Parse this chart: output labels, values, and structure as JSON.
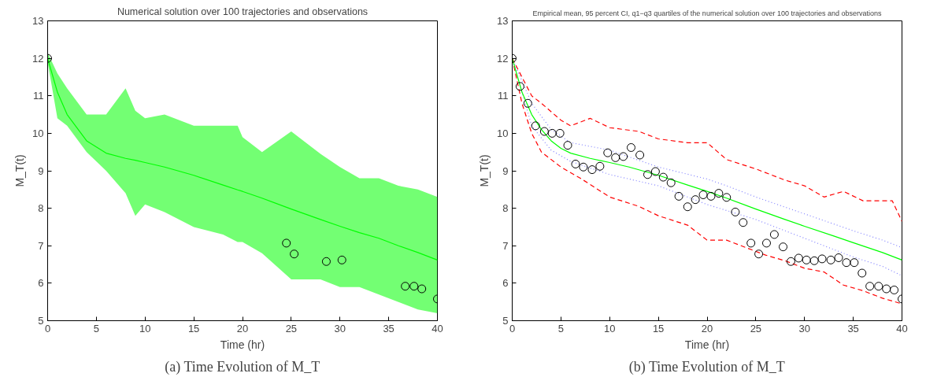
{
  "chart_data": [
    {
      "type": "line",
      "title": "Numerical solution over 100 trajectories and observations",
      "xlabel": "Time (hr)",
      "ylabel": "M_T(t)",
      "xlim": [
        0,
        40
      ],
      "ylim": [
        5,
        13
      ],
      "xticks": [
        0,
        5,
        10,
        15,
        20,
        25,
        30,
        35,
        40
      ],
      "yticks": [
        5,
        6,
        7,
        8,
        9,
        10,
        11,
        12,
        13
      ],
      "grid": false,
      "annotations": [
        "(a) Time Evolution of M_T"
      ],
      "series": [
        {
          "color": "#00ff00",
          "x": [
            0,
            1,
            2,
            4,
            6,
            8,
            9,
            10,
            12,
            15,
            18,
            19.5,
            20,
            22,
            25,
            28,
            30,
            32,
            34,
            36,
            38,
            40
          ],
          "values": [
            12.0,
            11.1,
            10.5,
            9.8,
            9.47,
            9.33,
            9.28,
            9.22,
            9.1,
            8.88,
            8.62,
            8.49,
            8.45,
            8.27,
            7.98,
            7.7,
            7.52,
            7.35,
            7.2,
            7.0,
            6.82,
            6.62
          ],
          "upper": [
            12.15,
            11.6,
            11.2,
            10.5,
            10.5,
            11.2,
            10.6,
            10.4,
            10.5,
            10.2,
            10.2,
            10.2,
            9.9,
            9.5,
            10.05,
            9.45,
            9.1,
            8.8,
            8.8,
            8.6,
            8.5,
            8.3
          ],
          "lower": [
            11.9,
            10.4,
            10.2,
            9.5,
            9.0,
            8.4,
            7.8,
            8.1,
            7.9,
            7.5,
            7.3,
            7.1,
            7.1,
            6.8,
            6.1,
            6.1,
            5.9,
            5.9,
            5.7,
            5.5,
            5.3,
            5.2
          ]
        },
        {
          "type": "scatter",
          "color": "#000000",
          "marker": "circle",
          "x": [
            0,
            24.5,
            25.3,
            28.6,
            30.2,
            36.7,
            37.6,
            38.4,
            40
          ],
          "values": [
            12.0,
            7.07,
            6.78,
            6.58,
            6.62,
            5.92,
            5.92,
            5.85,
            5.58
          ]
        }
      ]
    },
    {
      "type": "line",
      "title": "Empirical mean, 95 percent CI, q1−q3 quartiles of the numerical solution over 100 trajectories and observations",
      "xlabel": "Time (hr)",
      "ylabel": "M_T(t)",
      "xlim": [
        0,
        40
      ],
      "ylim": [
        5,
        13
      ],
      "xticks": [
        0,
        5,
        10,
        15,
        20,
        25,
        30,
        35,
        40
      ],
      "yticks": [
        5,
        6,
        7,
        8,
        9,
        10,
        11,
        12,
        13
      ],
      "grid": false,
      "annotations": [
        "(b) Time Evolution of M_T"
      ],
      "series": [
        {
          "color": "#ff0000",
          "line_style": "dashed",
          "x": [
            0,
            1,
            2,
            3,
            5,
            6,
            8,
            10,
            13,
            15,
            18,
            20,
            22,
            25,
            28,
            30,
            32,
            34,
            36,
            38,
            39,
            40
          ],
          "values": [
            12.0,
            11.5,
            11.0,
            10.8,
            10.35,
            10.2,
            10.4,
            10.15,
            10.05,
            9.85,
            9.75,
            9.75,
            9.3,
            9.05,
            8.75,
            8.6,
            8.3,
            8.45,
            8.2,
            8.2,
            8.2,
            7.65
          ]
        },
        {
          "color": "#ff0000",
          "line_style": "dashed",
          "x": [
            0,
            1,
            2,
            3,
            5,
            7,
            10,
            13,
            15,
            18,
            20,
            22,
            24,
            26,
            28,
            30,
            32,
            34,
            36,
            38,
            40
          ],
          "values": [
            12.0,
            10.8,
            10.0,
            9.5,
            9.1,
            8.8,
            8.3,
            8.05,
            7.8,
            7.55,
            7.15,
            7.15,
            6.95,
            6.75,
            6.6,
            6.4,
            6.3,
            5.95,
            5.8,
            5.6,
            5.45
          ]
        },
        {
          "color": "#8080ff",
          "line_style": "dotted",
          "x": [
            0,
            2,
            4,
            6,
            10,
            15,
            20,
            22,
            25,
            30,
            35,
            38,
            40
          ],
          "values": [
            12.0,
            10.8,
            10.1,
            9.75,
            9.55,
            9.1,
            8.78,
            8.6,
            8.3,
            7.85,
            7.4,
            7.15,
            6.95
          ]
        },
        {
          "color": "#8080ff",
          "line_style": "dotted",
          "x": [
            0,
            2,
            4,
            6,
            10,
            15,
            20,
            25,
            30,
            35,
            38,
            40
          ],
          "values": [
            12.0,
            10.2,
            9.55,
            9.25,
            8.9,
            8.6,
            8.1,
            7.7,
            7.2,
            6.7,
            6.45,
            6.2
          ]
        },
        {
          "color": "#00ff00",
          "line_style": "solid",
          "x": [
            0,
            1,
            2,
            3,
            4,
            5,
            6,
            8,
            10,
            12,
            15,
            18,
            20,
            22,
            25,
            28,
            30,
            33,
            35,
            38,
            40
          ],
          "values": [
            12.0,
            11.1,
            10.5,
            10.1,
            9.8,
            9.6,
            9.47,
            9.33,
            9.22,
            9.1,
            8.88,
            8.62,
            8.45,
            8.27,
            7.98,
            7.7,
            7.52,
            7.26,
            7.08,
            6.82,
            6.62
          ]
        },
        {
          "type": "scatter",
          "color": "#000000",
          "marker": "circle",
          "x": [
            0,
            0.8,
            1.6,
            2.4,
            3.3,
            4.1,
            4.9,
            5.7,
            6.5,
            7.3,
            8.2,
            9.0,
            9.8,
            10.6,
            11.4,
            12.2,
            13.1,
            13.9,
            14.7,
            15.5,
            16.3,
            17.1,
            18.0,
            18.8,
            19.6,
            20.4,
            21.2,
            22.0,
            22.9,
            23.7,
            24.5,
            25.3,
            26.1,
            26.9,
            27.8,
            28.6,
            29.4,
            30.2,
            31.0,
            31.8,
            32.7,
            33.5,
            34.3,
            35.1,
            35.9,
            36.7,
            37.6,
            38.4,
            39.2,
            40
          ],
          "values": [
            12.0,
            11.25,
            10.8,
            10.2,
            10.05,
            10.0,
            10.0,
            9.68,
            9.18,
            9.1,
            9.03,
            9.12,
            9.48,
            9.35,
            9.38,
            9.62,
            9.42,
            8.9,
            8.98,
            8.83,
            8.68,
            8.32,
            8.04,
            8.23,
            8.36,
            8.32,
            8.4,
            8.29,
            7.9,
            7.62,
            7.07,
            6.78,
            7.07,
            7.3,
            6.97,
            6.58,
            6.67,
            6.62,
            6.6,
            6.65,
            6.62,
            6.68,
            6.55,
            6.55,
            6.27,
            5.92,
            5.92,
            5.85,
            5.82,
            5.58
          ]
        }
      ]
    }
  ]
}
